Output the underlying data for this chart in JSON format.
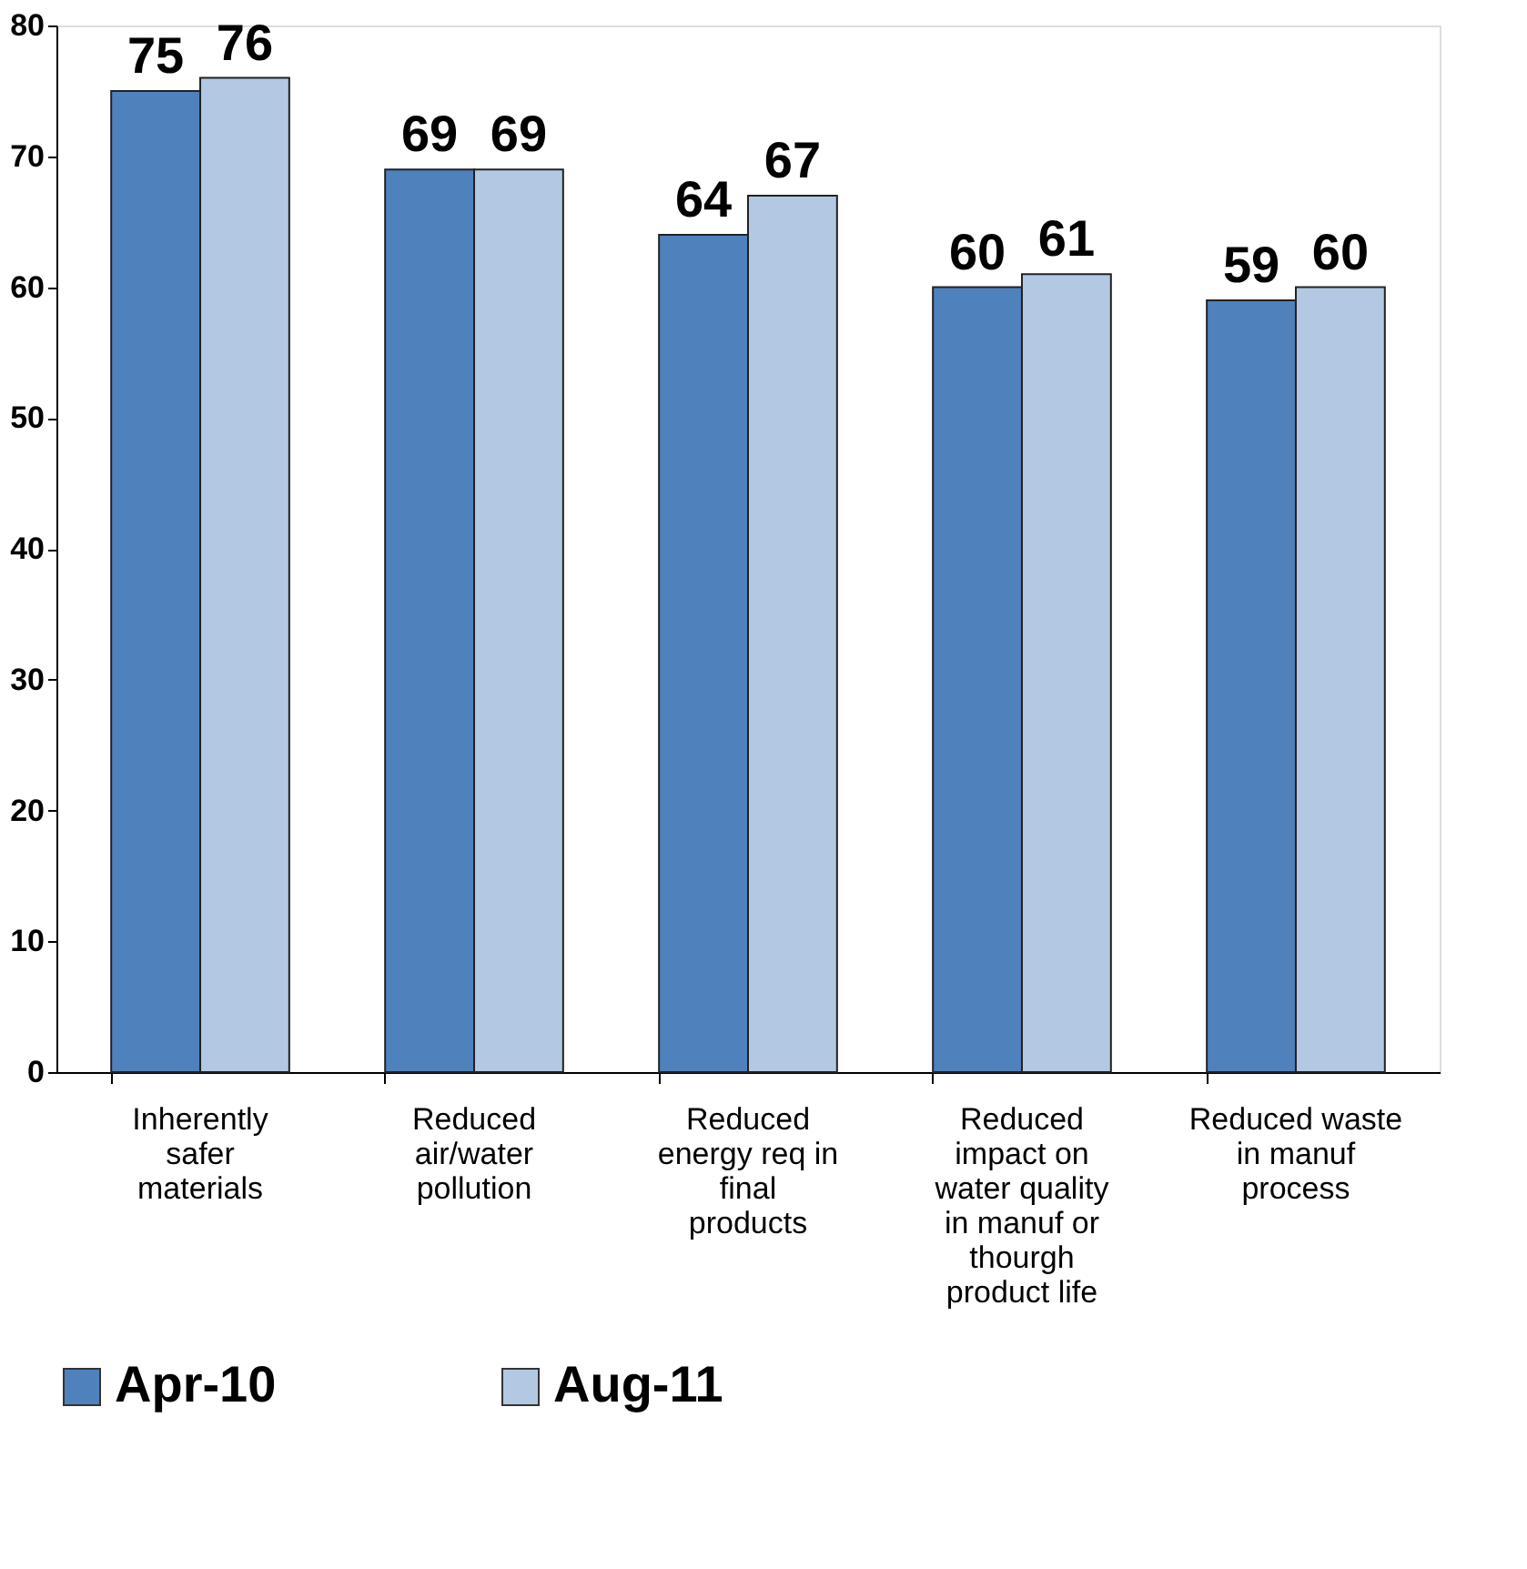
{
  "chart_data": {
    "type": "bar",
    "categories": [
      "Inherently safer materials",
      "Reduced air/water pollution",
      "Reduced energy req in final products",
      "Reduced impact on water quality in manuf or thourgh product life",
      "Reduced waste in manuf process"
    ],
    "series": [
      {
        "name": "Apr-10",
        "color": "#4f81bd",
        "values": [
          75,
          69,
          64,
          60,
          59
        ]
      },
      {
        "name": "Aug-11",
        "color": "#b3c8e3",
        "values": [
          76,
          69,
          67,
          61,
          60
        ]
      }
    ],
    "ylim": [
      0,
      80
    ],
    "yticks": [
      0,
      10,
      20,
      30,
      40,
      50,
      60,
      70,
      80
    ],
    "data_labels": true,
    "grid": false,
    "legend": "bottom"
  }
}
